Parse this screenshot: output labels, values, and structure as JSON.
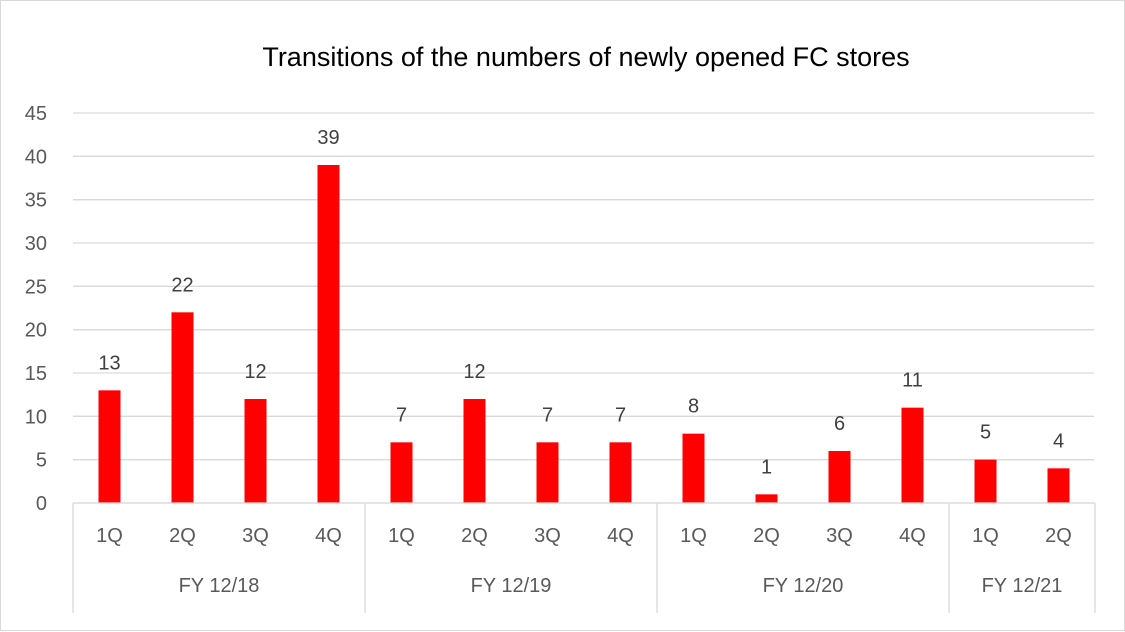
{
  "chart_data": {
    "type": "bar",
    "title": "Transitions of the numbers of newly opened FC stores",
    "xlabel": "",
    "ylabel": "",
    "ylim": [
      0,
      45
    ],
    "yticks": [
      0,
      5,
      10,
      15,
      20,
      25,
      30,
      35,
      40,
      45
    ],
    "grid": true,
    "legend": "none",
    "bar_color": "#ff0000",
    "groups": [
      {
        "label": "FY 12/18",
        "categories": [
          "1Q",
          "2Q",
          "3Q",
          "4Q"
        ],
        "values": [
          13,
          22,
          12,
          39
        ]
      },
      {
        "label": "FY 12/19",
        "categories": [
          "1Q",
          "2Q",
          "3Q",
          "4Q"
        ],
        "values": [
          7,
          12,
          7,
          7
        ]
      },
      {
        "label": "FY 12/20",
        "categories": [
          "1Q",
          "2Q",
          "3Q",
          "4Q"
        ],
        "values": [
          8,
          1,
          6,
          11
        ]
      },
      {
        "label": "FY 12/21",
        "categories": [
          "1Q",
          "2Q"
        ],
        "values": [
          5,
          4
        ]
      }
    ]
  }
}
